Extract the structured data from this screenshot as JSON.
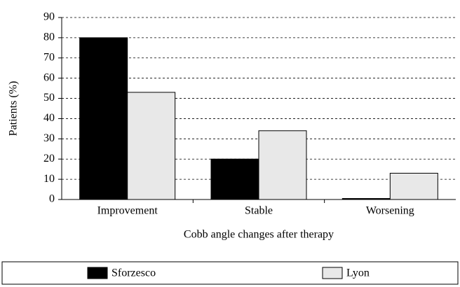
{
  "chart_data": {
    "type": "bar",
    "x_label": "Cobb angle changes after therapy",
    "y_label": "Patients (%)",
    "categories": [
      "Improvement",
      "Stable",
      "Worsening"
    ],
    "series": [
      {
        "name": "Sforzesco",
        "color": "#000000",
        "values": [
          80,
          20,
          0.5
        ]
      },
      {
        "name": "Lyon",
        "color": "#e8e8e8",
        "values": [
          53,
          34,
          13
        ]
      }
    ],
    "ylim": [
      0,
      90
    ],
    "yticks": [
      0,
      10,
      20,
      30,
      40,
      50,
      60,
      70,
      80,
      90
    ],
    "grid": true,
    "legend": "bottom"
  }
}
